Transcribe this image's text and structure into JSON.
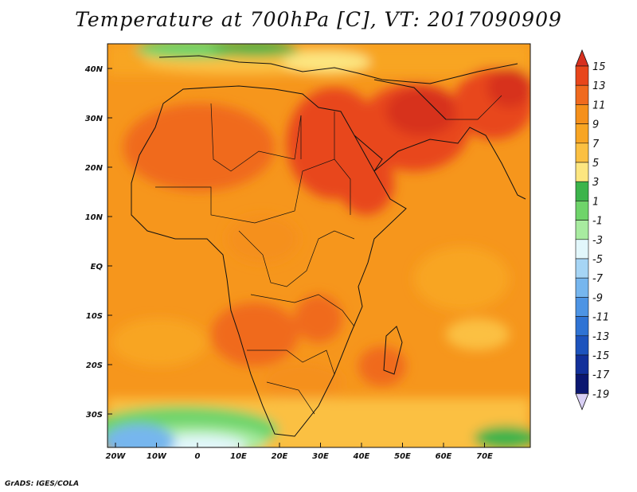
{
  "title": "Temperature at 700hPa [C], VT: 2017090909",
  "credit": "GrADS: IGES/COLA",
  "lat_ticks": [
    "40N",
    "30N",
    "20N",
    "10N",
    "EQ",
    "10S",
    "20S",
    "30S"
  ],
  "lon_ticks": [
    "20W",
    "10W",
    "0",
    "10E",
    "20E",
    "30E",
    "40E",
    "50E",
    "60E",
    "70E"
  ],
  "colorbar": {
    "labels": [
      "15",
      "13",
      "11",
      "9",
      "7",
      "5",
      "3",
      "1",
      "-1",
      "-3",
      "-5",
      "-7",
      "-9",
      "-11",
      "-13",
      "-15",
      "-17",
      "-19"
    ],
    "colors": [
      "#d7301f",
      "#e8461b",
      "#f06a1e",
      "#f5901b",
      "#f8a523",
      "#fbc042",
      "#fde680",
      "#3cb44b",
      "#6fd46a",
      "#a8eba0",
      "#e2f7fb",
      "#a6d5f5",
      "#76b6ee",
      "#4d94e4",
      "#2f73d4",
      "#1d53bd",
      "#12309a",
      "#0b1770"
    ]
  }
}
